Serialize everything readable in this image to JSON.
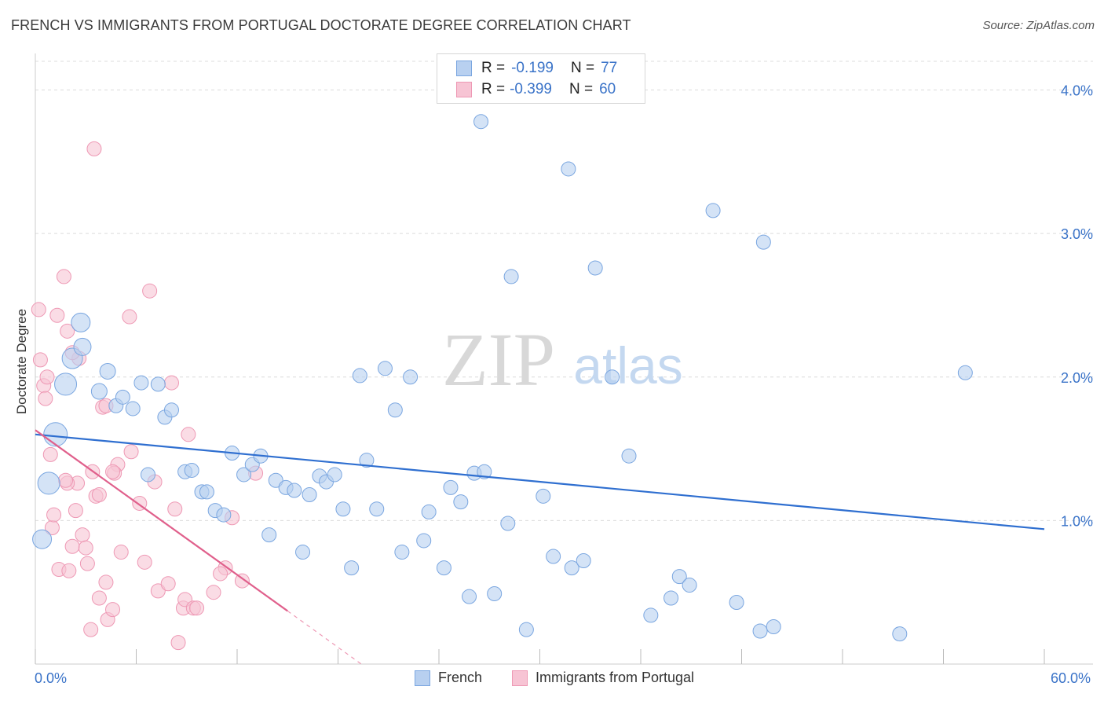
{
  "header": {
    "title": "FRENCH VS IMMIGRANTS FROM PORTUGAL DOCTORATE DEGREE CORRELATION CHART",
    "source": "Source: ZipAtlas.com"
  },
  "watermark": {
    "zip": "ZIP",
    "atlas": "atlas"
  },
  "legend": {
    "rows": [
      {
        "r_label": "R =",
        "r_value": "-0.199",
        "n_label": "N =",
        "n_value": "77"
      },
      {
        "r_label": "R =",
        "r_value": "-0.399",
        "n_label": "N =",
        "n_value": "60"
      }
    ]
  },
  "bottom_legend": {
    "french": "French",
    "portugal": "Immigrants from Portugal"
  },
  "colors": {
    "french_fill": "#b8d0f0",
    "french_stroke": "#7aa6e0",
    "french_line": "#2f6fd0",
    "portugal_fill": "#f7c4d4",
    "portugal_stroke": "#ee98b4",
    "portugal_line": "#e0608c",
    "tick_text": "#3a73c8",
    "grid": "#dcdcdc"
  },
  "chart_data": {
    "type": "scatter",
    "title": "FRENCH VS IMMIGRANTS FROM PORTUGAL DOCTORATE DEGREE CORRELATION CHART",
    "xlabel": "",
    "ylabel": "Doctorate Degree",
    "xlim": [
      0,
      60
    ],
    "ylim": [
      0,
      4.2
    ],
    "x_tick_labels": [
      "0.0%",
      "60.0%"
    ],
    "y_ticks": [
      {
        "value": 1.0,
        "label": "1.0%"
      },
      {
        "value": 2.0,
        "label": "2.0%"
      },
      {
        "value": 3.0,
        "label": "3.0%"
      },
      {
        "value": 4.0,
        "label": "4.0%"
      }
    ],
    "series": [
      {
        "name": "French",
        "R": -0.199,
        "N": 77,
        "trend": {
          "x": [
            0,
            60
          ],
          "y": [
            1.6,
            0.94
          ]
        },
        "points": [
          [
            0.4,
            0.87
          ],
          [
            0.8,
            1.26
          ],
          [
            1.2,
            1.6
          ],
          [
            1.8,
            1.95
          ],
          [
            2.2,
            2.13
          ],
          [
            2.8,
            2.21
          ],
          [
            2.7,
            2.38
          ],
          [
            3.8,
            1.9
          ],
          [
            4.3,
            2.04
          ],
          [
            4.8,
            1.8
          ],
          [
            5.2,
            1.86
          ],
          [
            5.8,
            1.78
          ],
          [
            6.3,
            1.96
          ],
          [
            6.7,
            1.32
          ],
          [
            7.3,
            1.95
          ],
          [
            7.7,
            1.72
          ],
          [
            8.1,
            1.77
          ],
          [
            8.9,
            1.34
          ],
          [
            9.3,
            1.35
          ],
          [
            9.9,
            1.2
          ],
          [
            10.2,
            1.2
          ],
          [
            10.7,
            1.07
          ],
          [
            11.2,
            1.04
          ],
          [
            11.7,
            1.47
          ],
          [
            12.4,
            1.32
          ],
          [
            12.9,
            1.39
          ],
          [
            13.4,
            1.45
          ],
          [
            13.9,
            0.9
          ],
          [
            14.3,
            1.28
          ],
          [
            14.9,
            1.23
          ],
          [
            15.4,
            1.21
          ],
          [
            15.9,
            0.78
          ],
          [
            16.3,
            1.18
          ],
          [
            16.9,
            1.31
          ],
          [
            17.3,
            1.27
          ],
          [
            17.8,
            1.32
          ],
          [
            18.3,
            1.08
          ],
          [
            18.8,
            0.67
          ],
          [
            19.3,
            2.01
          ],
          [
            19.7,
            1.42
          ],
          [
            20.3,
            1.08
          ],
          [
            20.8,
            2.06
          ],
          [
            21.4,
            1.77
          ],
          [
            21.8,
            0.78
          ],
          [
            22.3,
            2.0
          ],
          [
            23.1,
            0.86
          ],
          [
            23.4,
            1.06
          ],
          [
            24.3,
            0.67
          ],
          [
            24.7,
            1.23
          ],
          [
            25.3,
            1.13
          ],
          [
            25.8,
            0.47
          ],
          [
            26.1,
            1.33
          ],
          [
            26.7,
            1.34
          ],
          [
            27.3,
            0.49
          ],
          [
            28.1,
            0.98
          ],
          [
            28.3,
            2.7
          ],
          [
            29.2,
            0.24
          ],
          [
            30.2,
            1.17
          ],
          [
            30.8,
            0.75
          ],
          [
            31.7,
            3.45
          ],
          [
            31.9,
            0.67
          ],
          [
            32.6,
            0.72
          ],
          [
            33.3,
            2.76
          ],
          [
            34.3,
            2.0
          ],
          [
            35.3,
            1.45
          ],
          [
            36.6,
            0.34
          ],
          [
            37.8,
            0.46
          ],
          [
            38.3,
            0.61
          ],
          [
            38.9,
            0.55
          ],
          [
            40.3,
            3.16
          ],
          [
            41.7,
            0.43
          ],
          [
            43.1,
            0.23
          ],
          [
            43.3,
            2.94
          ],
          [
            43.9,
            0.26
          ],
          [
            51.4,
            0.21
          ],
          [
            55.3,
            2.03
          ],
          [
            26.5,
            3.78
          ]
        ],
        "sizes": [
          12,
          14,
          15,
          14,
          13,
          11,
          12,
          10,
          10,
          9,
          9,
          9,
          9,
          9,
          9,
          9,
          9,
          9,
          9,
          9,
          9,
          9,
          9,
          9,
          9,
          9,
          9,
          9,
          9,
          9,
          9,
          9,
          9,
          9,
          9,
          9,
          9,
          9,
          9,
          9,
          9,
          9,
          9,
          9,
          9,
          9,
          9,
          9,
          9,
          9,
          9,
          9,
          9,
          9,
          9,
          9,
          9,
          9,
          9,
          9,
          9,
          9,
          9,
          9,
          9,
          9,
          9,
          9,
          9,
          9,
          9,
          9,
          9,
          9,
          9,
          9,
          9
        ]
      },
      {
        "name": "Immigrants from Portugal",
        "R": -0.399,
        "N": 60,
        "trend": {
          "x": [
            0,
            15
          ],
          "y": [
            1.63,
            0.37
          ]
        },
        "trend_dashed": {
          "x": [
            15,
            19.5
          ],
          "y": [
            0.37,
            -0.01
          ]
        },
        "points": [
          [
            0.2,
            2.47
          ],
          [
            0.3,
            2.12
          ],
          [
            0.5,
            1.94
          ],
          [
            0.6,
            1.85
          ],
          [
            0.7,
            2.0
          ],
          [
            0.9,
            1.46
          ],
          [
            1.0,
            0.95
          ],
          [
            1.1,
            1.04
          ],
          [
            1.3,
            2.43
          ],
          [
            1.4,
            0.66
          ],
          [
            1.7,
            2.7
          ],
          [
            1.9,
            2.32
          ],
          [
            2.0,
            0.65
          ],
          [
            2.2,
            0.82
          ],
          [
            2.4,
            1.07
          ],
          [
            2.6,
            2.13
          ],
          [
            2.8,
            0.9
          ],
          [
            3.0,
            0.81
          ],
          [
            3.1,
            0.7
          ],
          [
            3.3,
            0.24
          ],
          [
            3.4,
            1.34
          ],
          [
            3.5,
            3.59
          ],
          [
            3.6,
            1.17
          ],
          [
            3.8,
            0.46
          ],
          [
            4.0,
            1.79
          ],
          [
            4.2,
            0.57
          ],
          [
            4.3,
            0.31
          ],
          [
            4.6,
            0.38
          ],
          [
            4.9,
            1.39
          ],
          [
            5.1,
            0.78
          ],
          [
            5.6,
            2.42
          ],
          [
            6.2,
            1.12
          ],
          [
            6.5,
            0.71
          ],
          [
            6.8,
            2.6
          ],
          [
            7.1,
            1.27
          ],
          [
            7.3,
            0.51
          ],
          [
            7.9,
            0.56
          ],
          [
            8.1,
            1.96
          ],
          [
            8.3,
            1.08
          ],
          [
            8.5,
            0.15
          ],
          [
            8.8,
            0.39
          ],
          [
            8.9,
            0.45
          ],
          [
            9.1,
            1.6
          ],
          [
            9.4,
            0.39
          ],
          [
            9.6,
            0.39
          ],
          [
            10.6,
            0.5
          ],
          [
            11.3,
            0.67
          ],
          [
            11.7,
            1.02
          ],
          [
            12.3,
            0.58
          ],
          [
            13.1,
            1.33
          ],
          [
            4.7,
            1.33
          ],
          [
            2.5,
            1.26
          ],
          [
            1.9,
            1.26
          ],
          [
            3.8,
            1.18
          ],
          [
            2.2,
            2.17
          ],
          [
            4.2,
            1.8
          ],
          [
            5.7,
            1.48
          ],
          [
            4.6,
            1.34
          ],
          [
            11.0,
            0.63
          ],
          [
            1.8,
            1.28
          ]
        ],
        "sizes": [
          9,
          9,
          9,
          9,
          9,
          9,
          9,
          9,
          9,
          9,
          9,
          9,
          9,
          9,
          9,
          9,
          9,
          9,
          9,
          9,
          9,
          9,
          9,
          9,
          9,
          9,
          9,
          9,
          9,
          9,
          9,
          9,
          9,
          9,
          9,
          9,
          9,
          9,
          9,
          9,
          9,
          9,
          9,
          9,
          9,
          9,
          9,
          9,
          9,
          9,
          9,
          9,
          9,
          9,
          9,
          9,
          9,
          9,
          9,
          9
        ]
      }
    ]
  }
}
